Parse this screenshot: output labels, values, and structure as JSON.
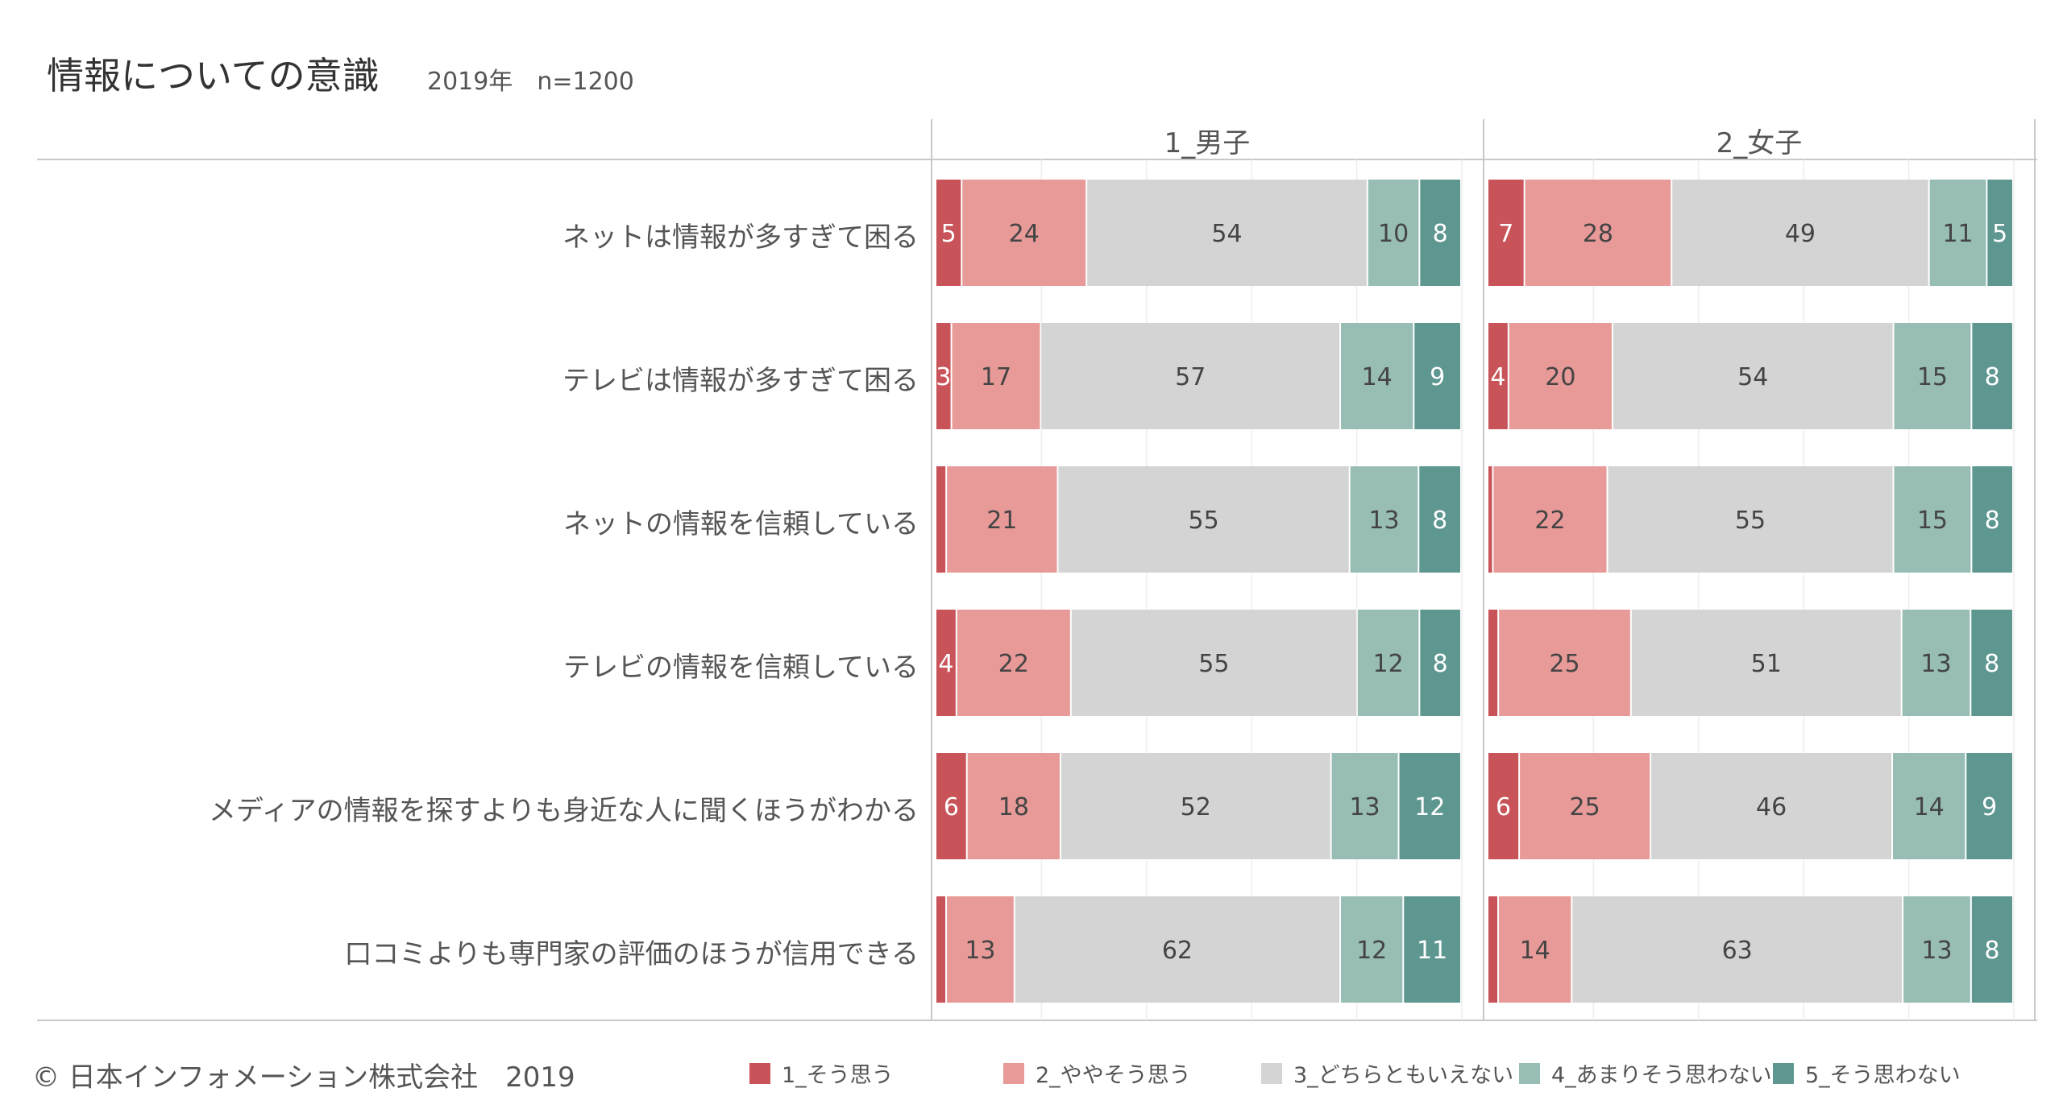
{
  "header": {
    "title": "情報についての意識",
    "subtitle": "2019年　n=1200"
  },
  "footer": {
    "copyright": "© 日本インフォメーション株式会社　2019"
  },
  "colors": [
    "#c85358",
    "#e89a98",
    "#d4d4d4",
    "#97bdb4",
    "#5e9690"
  ],
  "chart_data": {
    "type": "bar",
    "orientation": "horizontal",
    "stacked": true,
    "percent_stacked": true,
    "categories": [
      "ネットは情報が多すぎて困る",
      "テレビは情報が多すぎて困る",
      "ネットの情報を信頼している",
      "テレビの情報を信頼している",
      "メディアの情報を探すよりも身近な人に聞くほうがわかる",
      "口コミよりも専門家の評価のほうが信用できる"
    ],
    "legend": {
      "position": "bottom",
      "entries": [
        "1_そう思う",
        "2_ややそう思う",
        "3_どちらともいえない",
        "4_あまりそう思わない",
        "5_そう思わない"
      ]
    },
    "panels": [
      {
        "name": "1_男子",
        "series": [
          {
            "name": "1_そう思う",
            "values": [
              5,
              3,
              2,
              4,
              6,
              2
            ],
            "labels": [
              "5",
              "3",
              "",
              "4",
              "6",
              ""
            ]
          },
          {
            "name": "2_ややそう思う",
            "values": [
              24,
              17,
              21,
              22,
              18,
              13
            ],
            "labels": [
              "24",
              "17",
              "21",
              "22",
              "18",
              "13"
            ]
          },
          {
            "name": "3_どちらともいえない",
            "values": [
              54,
              57,
              55,
              55,
              52,
              62
            ],
            "labels": [
              "54",
              "57",
              "55",
              "55",
              "52",
              "62"
            ]
          },
          {
            "name": "4_あまりそう思わない",
            "values": [
              10,
              14,
              13,
              12,
              13,
              12
            ],
            "labels": [
              "10",
              "14",
              "13",
              "12",
              "13",
              "12"
            ]
          },
          {
            "name": "5_そう思わない",
            "values": [
              8,
              9,
              8,
              8,
              12,
              11
            ],
            "labels": [
              "8",
              "9",
              "8",
              "8",
              "12",
              "11"
            ]
          }
        ]
      },
      {
        "name": "2_女子",
        "series": [
          {
            "name": "1_そう思う",
            "values": [
              7,
              4,
              1,
              2,
              6,
              2
            ],
            "labels": [
              "7",
              "4",
              "",
              "",
              "6",
              ""
            ]
          },
          {
            "name": "2_ややそう思う",
            "values": [
              28,
              20,
              22,
              25,
              25,
              14
            ],
            "labels": [
              "28",
              "20",
              "22",
              "25",
              "25",
              "14"
            ]
          },
          {
            "name": "3_どちらともいえない",
            "values": [
              49,
              54,
              55,
              51,
              46,
              63
            ],
            "labels": [
              "49",
              "54",
              "55",
              "51",
              "46",
              "63"
            ]
          },
          {
            "name": "4_あまりそう思わない",
            "values": [
              11,
              15,
              15,
              13,
              14,
              13
            ],
            "labels": [
              "11",
              "15",
              "15",
              "13",
              "14",
              "13"
            ]
          },
          {
            "name": "5_そう思わない",
            "values": [
              5,
              8,
              8,
              8,
              9,
              8
            ],
            "labels": [
              "5",
              "8",
              "8",
              "8",
              "9",
              "8"
            ]
          }
        ]
      }
    ]
  }
}
